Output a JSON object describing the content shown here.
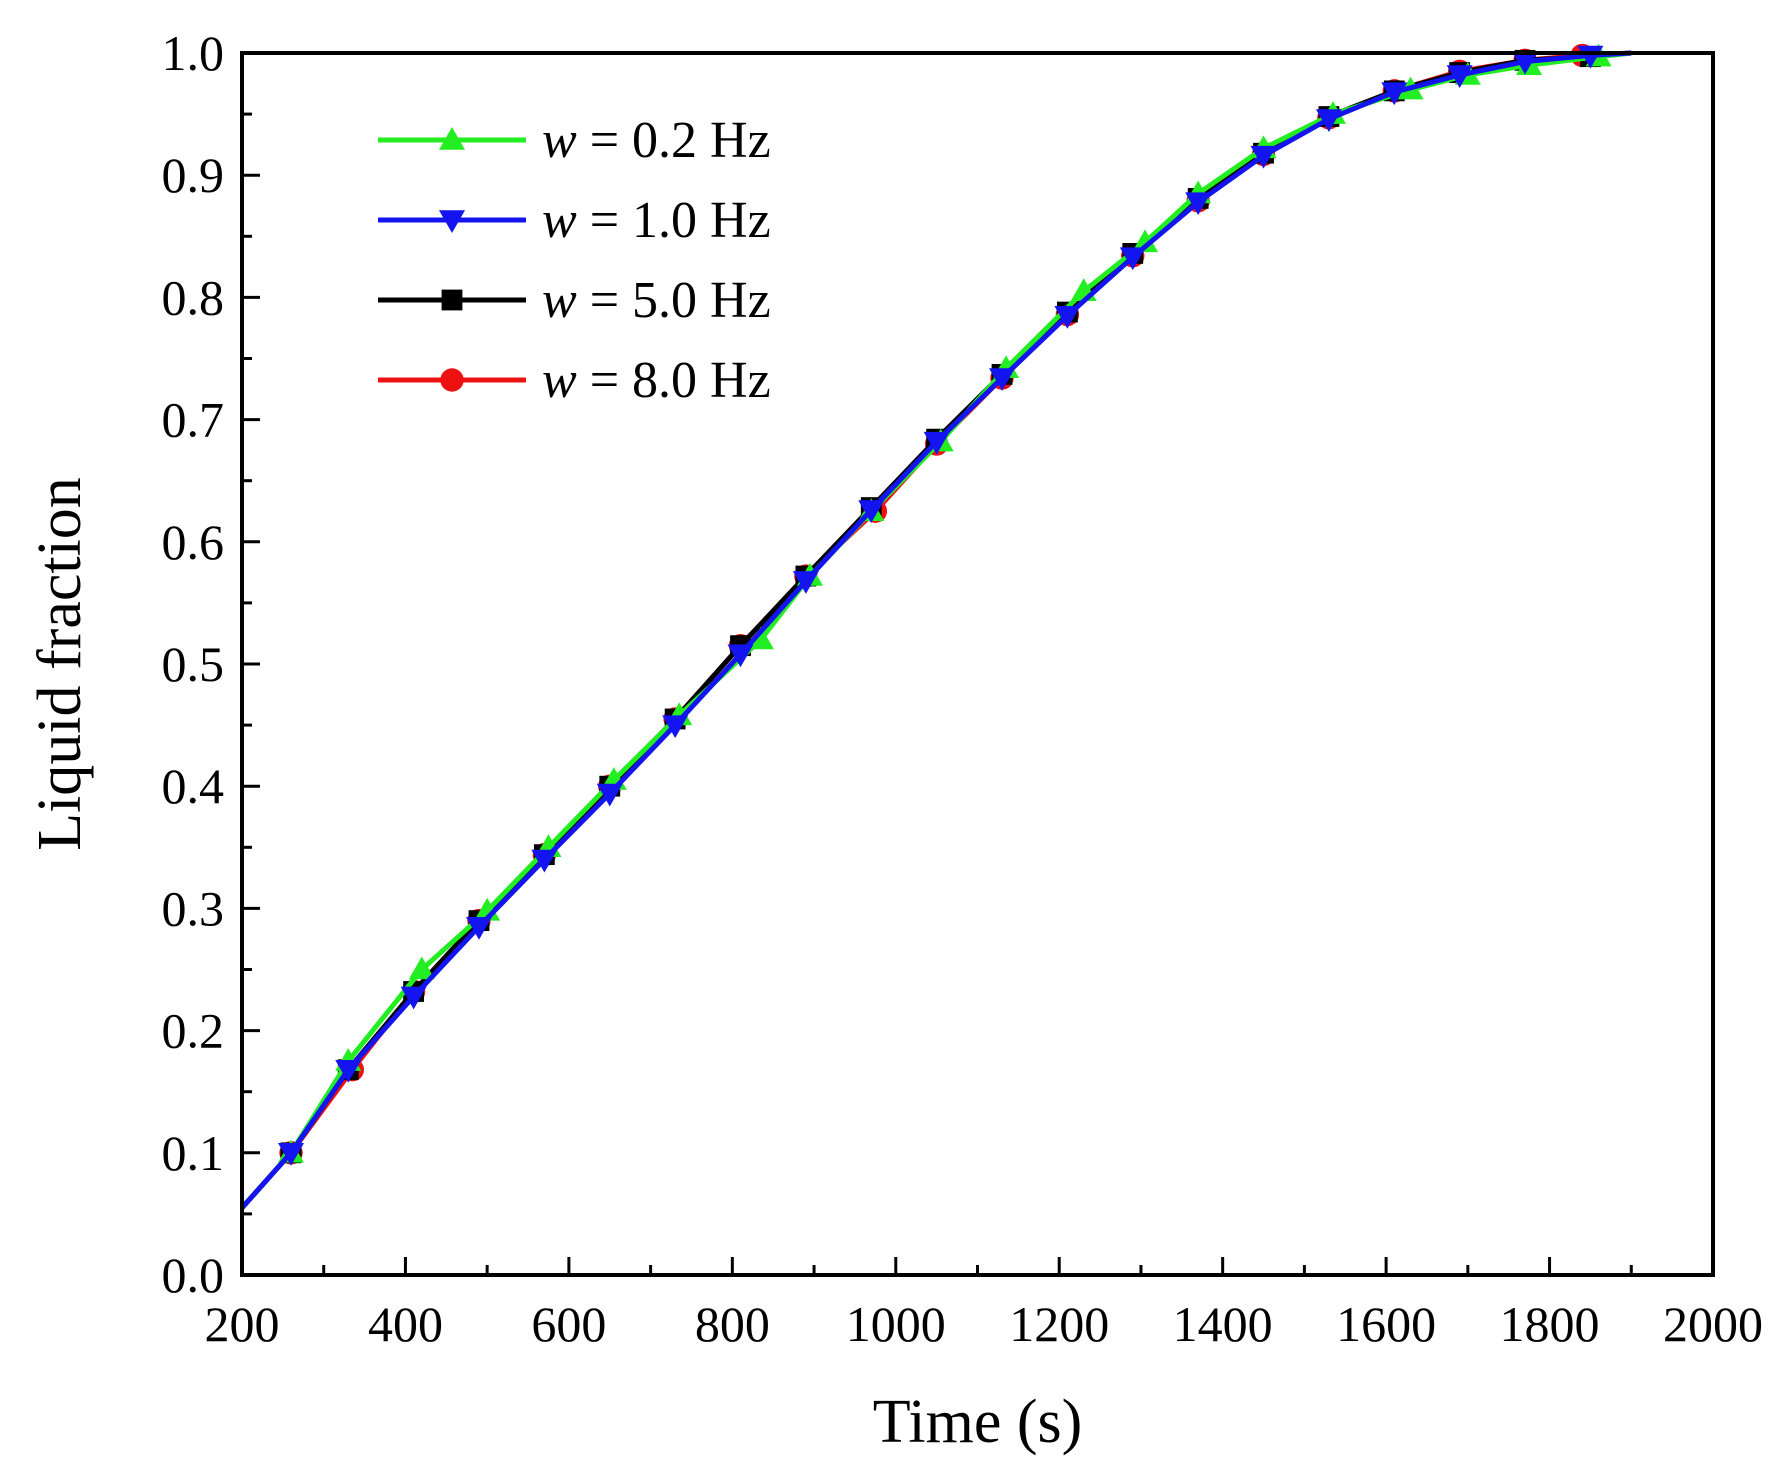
{
  "chart_data": {
    "type": "line",
    "title": "",
    "xlabel": "Time (s)",
    "ylabel": "Liquid fraction",
    "xlim": [
      200,
      2000
    ],
    "ylim": [
      0.0,
      1.0
    ],
    "xticks": [
      200,
      400,
      600,
      800,
      1000,
      1200,
      1400,
      1600,
      1800,
      2000
    ],
    "yticks": [
      0.0,
      0.1,
      0.2,
      0.3,
      0.4,
      0.5,
      0.6,
      0.7,
      0.8,
      0.9,
      1.0
    ],
    "xtick_labels": [
      "200",
      "400",
      "600",
      "800",
      "1000",
      "1200",
      "1400",
      "1600",
      "1800",
      "2000"
    ],
    "ytick_labels": [
      "0.0",
      "0.1",
      "0.2",
      "0.3",
      "0.4",
      "0.5",
      "0.6",
      "0.7",
      "0.8",
      "0.9",
      "1.0"
    ],
    "grid": false,
    "legend_position": "top-left",
    "series": [
      {
        "name": "w = 0.2 Hz",
        "legend_var": "w",
        "legend_rest": " = 0.2 Hz",
        "color": "#22ee22",
        "marker": "triangle-up",
        "x": [
          200,
          260,
          330,
          420,
          500,
          575,
          655,
          735,
          835,
          895,
          970,
          1055,
          1135,
          1230,
          1305,
          1370,
          1450,
          1535,
          1630,
          1700,
          1775,
          1860,
          1900
        ],
        "y": [
          0.055,
          0.1,
          0.175,
          0.25,
          0.298,
          0.35,
          0.405,
          0.458,
          0.52,
          0.572,
          0.625,
          0.682,
          0.742,
          0.805,
          0.845,
          0.885,
          0.922,
          0.95,
          0.97,
          0.982,
          0.99,
          0.997,
          1.0
        ]
      },
      {
        "name": "w = 1.0 Hz",
        "legend_var": "w",
        "legend_rest": " = 1.0 Hz",
        "color": "#1414f0",
        "marker": "triangle-down",
        "x": [
          200,
          260,
          330,
          410,
          490,
          570,
          650,
          730,
          810,
          890,
          970,
          1050,
          1130,
          1210,
          1290,
          1370,
          1450,
          1530,
          1610,
          1690,
          1770,
          1850,
          1900
        ],
        "y": [
          0.055,
          0.1,
          0.168,
          0.228,
          0.285,
          0.34,
          0.394,
          0.45,
          0.508,
          0.568,
          0.626,
          0.682,
          0.734,
          0.785,
          0.833,
          0.878,
          0.916,
          0.946,
          0.968,
          0.982,
          0.993,
          0.998,
          1.0
        ]
      },
      {
        "name": "w = 5.0 Hz",
        "legend_var": "w",
        "legend_rest": " = 5.0 Hz",
        "color": "#000000",
        "marker": "square",
        "x": [
          200,
          260,
          330,
          410,
          490,
          570,
          650,
          730,
          810,
          890,
          970,
          1050,
          1130,
          1210,
          1290,
          1370,
          1450,
          1530,
          1610,
          1690,
          1770,
          1850,
          1900
        ],
        "y": [
          0.055,
          0.1,
          0.168,
          0.232,
          0.29,
          0.344,
          0.4,
          0.455,
          0.515,
          0.572,
          0.628,
          0.684,
          0.737,
          0.788,
          0.836,
          0.881,
          0.918,
          0.948,
          0.969,
          0.984,
          0.994,
          0.997,
          1.0
        ]
      },
      {
        "name": "w = 8.0 Hz",
        "legend_var": "w",
        "legend_rest": " = 8.0 Hz",
        "color": "#ee1111",
        "marker": "circle",
        "x": [
          200,
          260,
          335,
          410,
          490,
          570,
          650,
          730,
          810,
          890,
          975,
          1050,
          1130,
          1210,
          1290,
          1370,
          1450,
          1530,
          1610,
          1690,
          1770,
          1840,
          1900
        ],
        "y": [
          0.055,
          0.1,
          0.168,
          0.232,
          0.29,
          0.344,
          0.4,
          0.455,
          0.515,
          0.572,
          0.625,
          0.68,
          0.734,
          0.786,
          0.834,
          0.879,
          0.917,
          0.947,
          0.969,
          0.985,
          0.994,
          0.998,
          1.0
        ]
      }
    ]
  }
}
